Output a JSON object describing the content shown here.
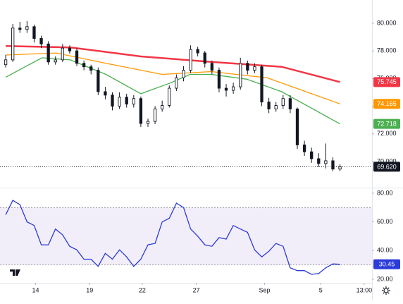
{
  "chart_data": [
    {
      "type": "candlestick",
      "x": [
        0,
        1,
        2,
        3,
        4,
        5,
        6,
        7,
        8,
        9,
        10,
        11,
        12,
        13,
        14,
        15,
        16,
        17,
        18,
        19,
        20,
        21,
        22,
        23,
        24,
        25,
        26,
        27,
        28,
        29,
        30,
        31,
        32,
        33,
        34,
        35,
        36,
        37,
        38,
        39,
        40,
        41,
        42,
        43,
        44,
        45,
        46,
        47
      ],
      "open": [
        77.0,
        77.35,
        79.65,
        79.55,
        79.75,
        78.9,
        78.5,
        77.2,
        77.35,
        78.2,
        78.0,
        77.1,
        76.85,
        76.6,
        75.05,
        74.8,
        74.0,
        74.65,
        74.15,
        74.55,
        72.75,
        72.9,
        73.8,
        74.05,
        75.3,
        76.05,
        76.6,
        78.1,
        77.85,
        77.1,
        76.6,
        75.3,
        75.15,
        75.4,
        77.1,
        76.6,
        76.85,
        74.3,
        73.8,
        74.05,
        74.55,
        73.8,
        71.2,
        70.7,
        70.2,
        69.85,
        70.05,
        69.45
      ],
      "high": [
        77.7,
        79.95,
        80.1,
        80.15,
        79.9,
        79.1,
        78.7,
        77.6,
        78.5,
        78.4,
        78.2,
        77.3,
        77.0,
        76.8,
        75.4,
        75.0,
        75.0,
        74.9,
        74.8,
        74.7,
        73.1,
        74.0,
        74.4,
        75.5,
        76.3,
        76.9,
        78.4,
        78.3,
        78.0,
        77.3,
        76.8,
        75.6,
        75.7,
        77.5,
        77.3,
        77.1,
        77.0,
        74.6,
        74.3,
        74.8,
        74.8,
        73.9,
        71.5,
        71.0,
        70.6,
        71.3,
        70.3,
        69.8
      ],
      "low": [
        76.8,
        77.2,
        79.3,
        79.3,
        78.6,
        78.2,
        77.0,
        77.0,
        77.2,
        77.8,
        76.9,
        76.6,
        76.3,
        74.8,
        74.5,
        73.7,
        73.8,
        73.9,
        73.9,
        72.5,
        72.5,
        72.7,
        73.6,
        73.9,
        75.1,
        75.8,
        76.4,
        77.6,
        76.8,
        76.3,
        75.0,
        74.7,
        74.9,
        75.2,
        76.3,
        76.4,
        74.0,
        73.5,
        73.6,
        73.8,
        73.5,
        70.9,
        70.4,
        69.9,
        69.6,
        69.5,
        69.3,
        69.3
      ],
      "close": [
        77.35,
        79.65,
        79.55,
        79.75,
        78.9,
        78.5,
        77.2,
        77.35,
        78.2,
        78.0,
        77.1,
        76.85,
        76.6,
        75.05,
        74.8,
        74.0,
        74.65,
        74.15,
        74.55,
        72.75,
        72.9,
        73.8,
        74.05,
        75.3,
        76.05,
        76.6,
        78.1,
        77.85,
        77.1,
        76.6,
        75.3,
        75.15,
        75.4,
        77.1,
        76.6,
        76.85,
        74.3,
        73.8,
        74.05,
        74.55,
        73.8,
        71.2,
        70.7,
        70.2,
        69.85,
        70.05,
        69.45,
        69.62
      ],
      "last_label": "69.620",
      "up_color": "#ffffff",
      "down_color": "#131722",
      "line_color": "#131722",
      "series": [
        {
          "color": "#f23645",
          "x": [
            0,
            9.1,
            19,
            28.9,
            38.8,
            47
          ],
          "values": [
            78.35,
            78.25,
            77.6,
            77.2,
            76.85,
            75.745
          ],
          "last_label": "75.745"
        },
        {
          "color": "#ff9800",
          "x": [
            0,
            7.1,
            14.1,
            22,
            28.9,
            36.8,
            47
          ],
          "values": [
            77.7,
            77.85,
            77.1,
            76.3,
            76.5,
            76.05,
            74.165
          ],
          "last_label": "74.165"
        },
        {
          "color": "#4caf50",
          "x": [
            0,
            5.1,
            9.1,
            14.1,
            19,
            23,
            25.9,
            28.9,
            33.9,
            38.8,
            47
          ],
          "values": [
            76.1,
            77.5,
            77.35,
            76.3,
            74.9,
            75.65,
            76.3,
            76.3,
            75.95,
            75.05,
            72.718
          ],
          "last_label": "72.718"
        }
      ],
      "xlim": [
        -0.8,
        51.5
      ],
      "ylim": [
        68.16,
        81.68
      ],
      "yticks": [
        {
          "value": 70,
          "label": "70.000"
        },
        {
          "value": 72,
          "label": "72.000"
        },
        {
          "value": 74,
          "label": "74.000"
        },
        {
          "value": 76,
          "label": "76.000"
        },
        {
          "value": 78,
          "label": "78.000"
        },
        {
          "value": 80,
          "label": "80.000"
        }
      ]
    },
    {
      "type": "line",
      "x": [
        0,
        1,
        2,
        3,
        4,
        5,
        6,
        7,
        8,
        9,
        10,
        11,
        12,
        13,
        14,
        15,
        16,
        17,
        18,
        19,
        20,
        21,
        22,
        23,
        24,
        25,
        26,
        27,
        28,
        29,
        30,
        31,
        32,
        33,
        34,
        35,
        36,
        37,
        38,
        39,
        40,
        41,
        42,
        43,
        44,
        45,
        46,
        47
      ],
      "series": [
        {
          "color": "#2b3bd9",
          "values": [
            65,
            75,
            72,
            60,
            57.5,
            44,
            44,
            55,
            51,
            43,
            40.5,
            34,
            34,
            29,
            38,
            34,
            40.5,
            35.6,
            29,
            34,
            44,
            45,
            60,
            62.5,
            73,
            70,
            55,
            50,
            44,
            43,
            49,
            48,
            57.5,
            55,
            52.7,
            40.5,
            35.6,
            39.5,
            45,
            43,
            28,
            26,
            26,
            23.4,
            24,
            28,
            30.7,
            30.45
          ],
          "last_label": "30.45"
        }
      ],
      "band": [
        30,
        70
      ],
      "band_color": "#7e57c2",
      "xlim": [
        -0.8,
        51.5
      ],
      "ylim": [
        18,
        82.9
      ],
      "yticks": [
        {
          "value": 20,
          "label": "20.00"
        },
        {
          "value": 40,
          "label": "40.00"
        },
        {
          "value": 60,
          "label": "60.00"
        },
        {
          "value": 80,
          "label": "80.00"
        }
      ],
      "xticks": [
        {
          "value": 4.2,
          "label": "14"
        },
        {
          "value": 11.8,
          "label": "19"
        },
        {
          "value": 19.2,
          "label": "22"
        },
        {
          "value": 26.8,
          "label": "27"
        },
        {
          "value": 36.4,
          "label": "Sep"
        },
        {
          "value": 44.3,
          "label": "5"
        },
        {
          "value": 50.4,
          "label": "13:00"
        }
      ]
    }
  ]
}
